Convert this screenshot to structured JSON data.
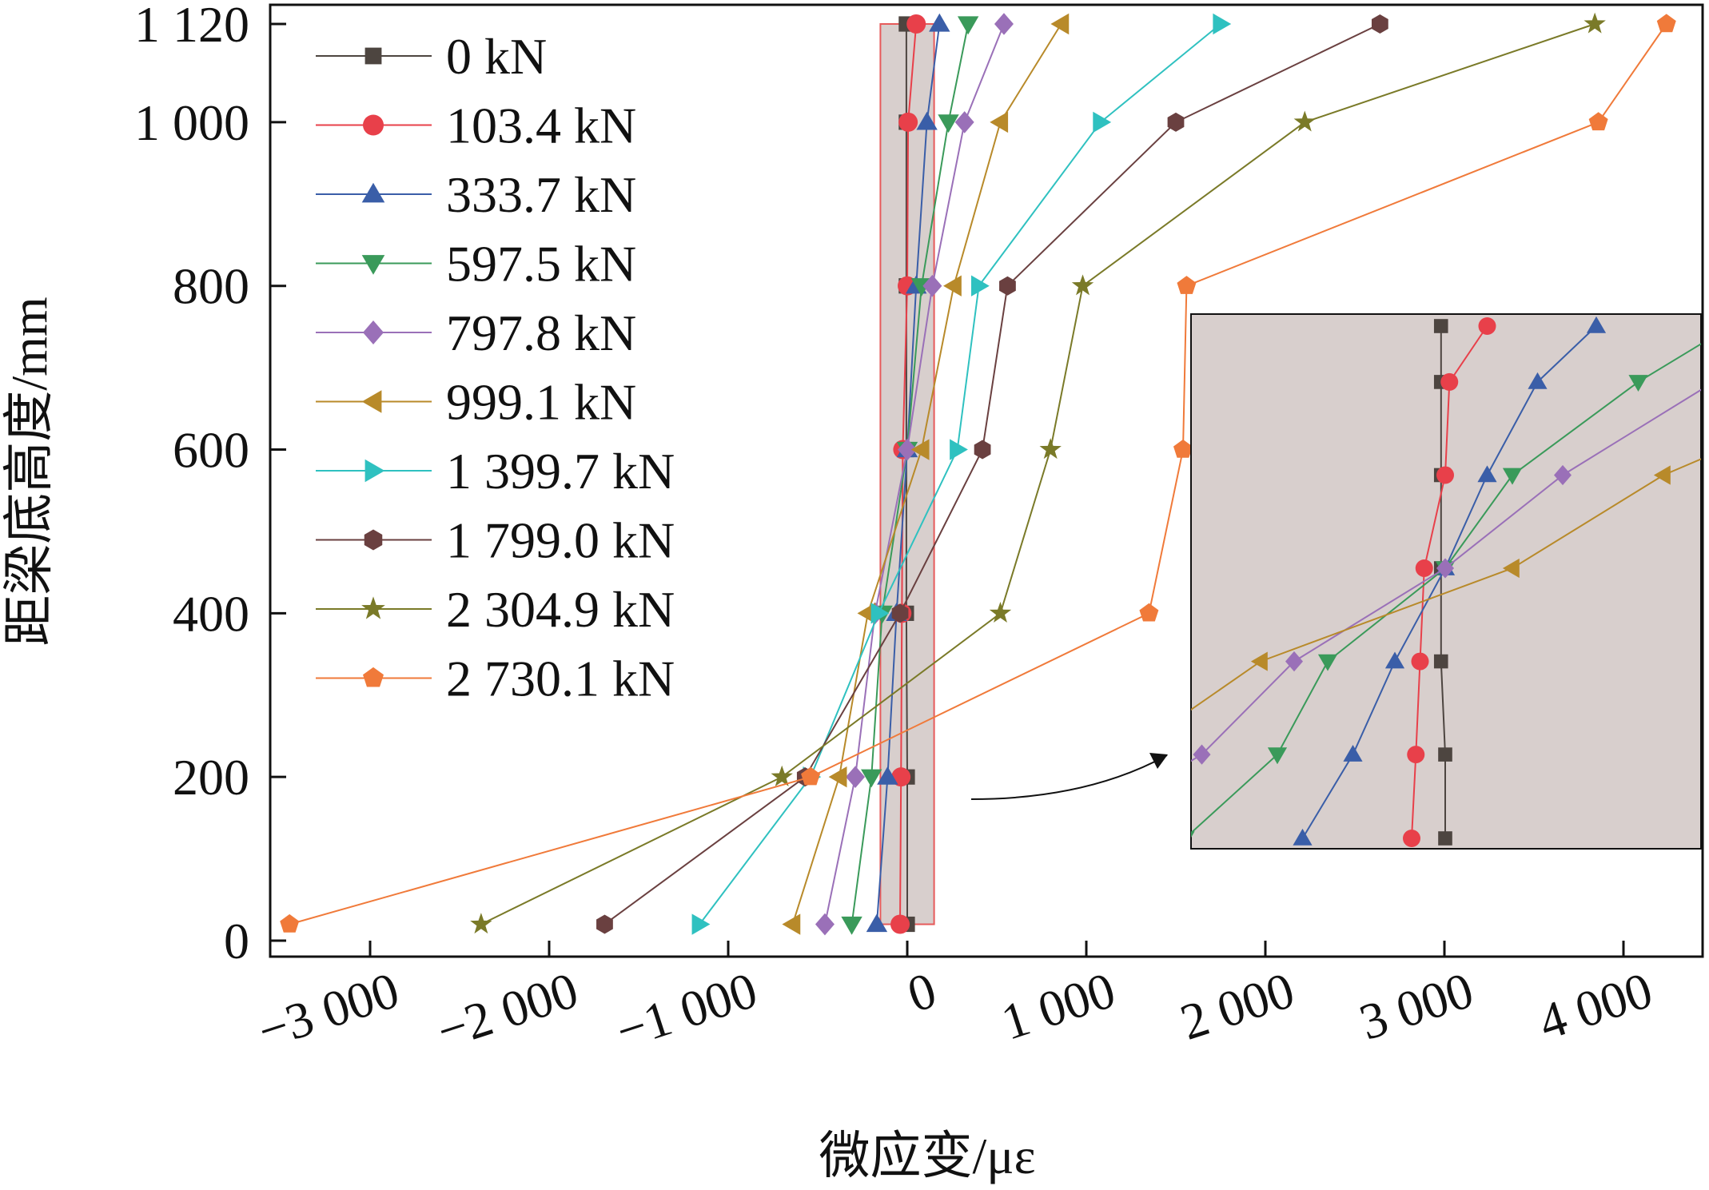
{
  "chart_data": {
    "type": "line",
    "title": "",
    "xlabel": "微应变/με",
    "ylabel": "距梁底高度/mm",
    "xlim": [
      -3500,
      4300
    ],
    "ylim": [
      0,
      1120
    ],
    "x_ticks": [
      -3000,
      -2000,
      -1000,
      0,
      1000,
      2000,
      3000,
      4000
    ],
    "x_tick_labels": [
      "−3 000",
      "−2 000",
      "−1 000",
      "0",
      "1 000",
      "2 000",
      "3 000",
      "4 000"
    ],
    "y_ticks": [
      0,
      200,
      400,
      600,
      800,
      1000,
      1120
    ],
    "y_tick_labels": [
      "0",
      "200",
      "400",
      "600",
      "800",
      "1 000",
      "1 120"
    ],
    "legend_position": "top-left",
    "grid": false,
    "heights": [
      20,
      200,
      400,
      600,
      800,
      1000,
      1120
    ],
    "series": [
      {
        "name": "0 kN",
        "color": "#4d4540",
        "marker": "square",
        "x": [
          0,
          0,
          -5,
          -5,
          -5,
          -5,
          -5
        ]
      },
      {
        "name": "103.4 kN",
        "color": "#e8404a",
        "marker": "circle",
        "x": [
          -40,
          -35,
          -30,
          -25,
          0,
          5,
          50
        ]
      },
      {
        "name": "333.7 kN",
        "color": "#3a5ea8",
        "marker": "triangle-up",
        "x": [
          -170,
          -110,
          -60,
          0,
          50,
          110,
          180
        ]
      },
      {
        "name": "597.5 kN",
        "color": "#3a9a5a",
        "marker": "triangle-down",
        "x": [
          -310,
          -200,
          -140,
          0,
          80,
          230,
          340
        ]
      },
      {
        "name": "797.8 kN",
        "color": "#9a70b8",
        "marker": "diamond",
        "x": [
          -460,
          -290,
          -180,
          0,
          140,
          320,
          540
        ]
      },
      {
        "name": "999.1 kN",
        "color": "#b88a2a",
        "marker": "triangle-left",
        "x": [
          -640,
          -380,
          -220,
          80,
          260,
          520,
          860
        ]
      },
      {
        "name": "1 399.7 kN",
        "color": "#2fc1c0",
        "marker": "triangle-right",
        "x": [
          -1160,
          -540,
          -160,
          280,
          400,
          1080,
          1750
        ]
      },
      {
        "name": "1 799.0 kN",
        "color": "#6a4040",
        "marker": "hexagon",
        "x": [
          -1690,
          -570,
          -40,
          420,
          560,
          1500,
          2640
        ]
      },
      {
        "name": "2 304.9 kN",
        "color": "#7a7a28",
        "marker": "star",
        "x": [
          -2380,
          -700,
          520,
          800,
          980,
          2220,
          3840
        ]
      },
      {
        "name": "2 730.1 kN",
        "color": "#f07a3a",
        "marker": "pentagon",
        "x": [
          -3450,
          -540,
          1350,
          1540,
          1560,
          3860,
          4240
        ]
      }
    ]
  }
}
